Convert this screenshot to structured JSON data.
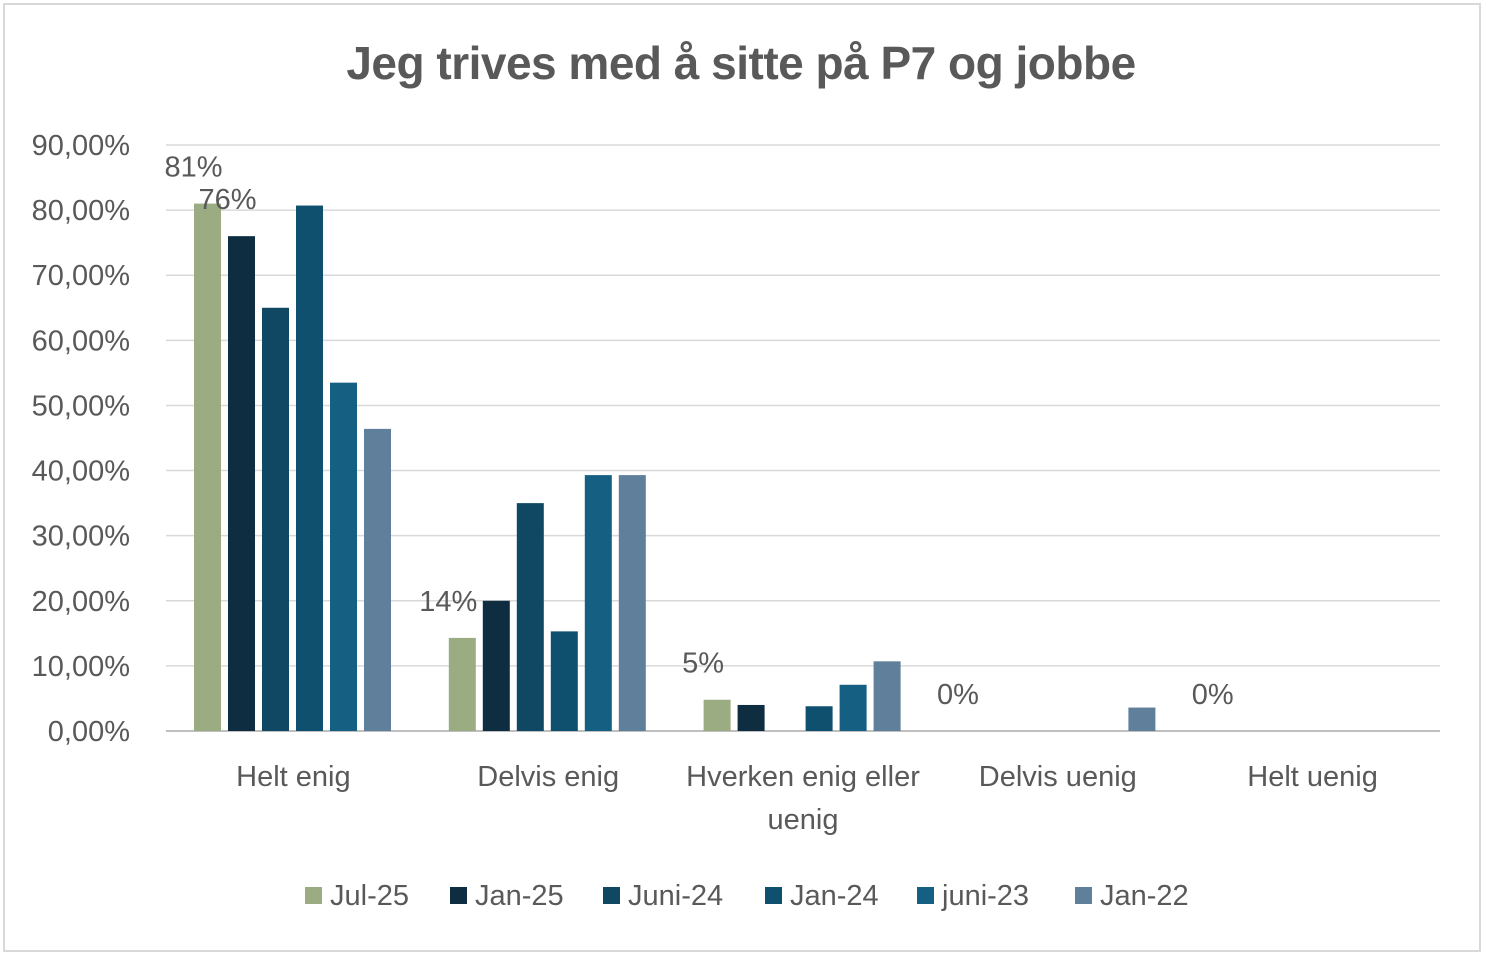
{
  "chart_data": {
    "type": "bar",
    "title": "Jeg trives med å sitte på P7 og jobbe",
    "xlabel": "",
    "ylabel": "",
    "ylim": [
      0,
      0.9
    ],
    "yticks": [
      "0,00%",
      "10,00%",
      "20,00%",
      "30,00%",
      "40,00%",
      "50,00%",
      "60,00%",
      "70,00%",
      "80,00%",
      "90,00%"
    ],
    "categories": [
      [
        "Helt enig"
      ],
      [
        "Delvis enig"
      ],
      [
        "Hverken enig eller",
        "uenig"
      ],
      [
        "Delvis uenig"
      ],
      [
        "Helt uenig"
      ]
    ],
    "series": [
      {
        "name": "Jul-25",
        "color": "#9bac83",
        "values": [
          0.81,
          0.143,
          0.048,
          0.0,
          0.0
        ],
        "labels": [
          "81%",
          "14%",
          "5%",
          "0%",
          "0%"
        ]
      },
      {
        "name": "Jan-25",
        "color": "#0e2d40",
        "values": [
          0.76,
          0.2,
          0.04,
          0.0,
          0.0
        ],
        "labels": [
          "76%",
          "",
          "",
          "",
          ""
        ]
      },
      {
        "name": "Juni-24",
        "color": "#104863",
        "values": [
          0.65,
          0.35,
          0.0,
          0.0,
          0.0
        ],
        "labels": [
          "",
          "",
          "",
          "",
          ""
        ]
      },
      {
        "name": "Jan-24",
        "color": "#0f506e",
        "values": [
          0.807,
          0.153,
          0.038,
          0.0,
          0.0
        ],
        "labels": [
          "",
          "",
          "",
          "",
          ""
        ]
      },
      {
        "name": "juni-23",
        "color": "#155f82",
        "values": [
          0.535,
          0.393,
          0.071,
          0.0,
          0.0
        ],
        "labels": [
          "",
          "",
          "",
          "",
          ""
        ]
      },
      {
        "name": "Jan-22",
        "color": "#5f7f9b",
        "values": [
          0.464,
          0.393,
          0.107,
          0.036,
          0.0
        ],
        "labels": [
          "",
          "",
          "",
          "",
          ""
        ]
      }
    ],
    "grid": true,
    "legend_position": "bottom"
  }
}
